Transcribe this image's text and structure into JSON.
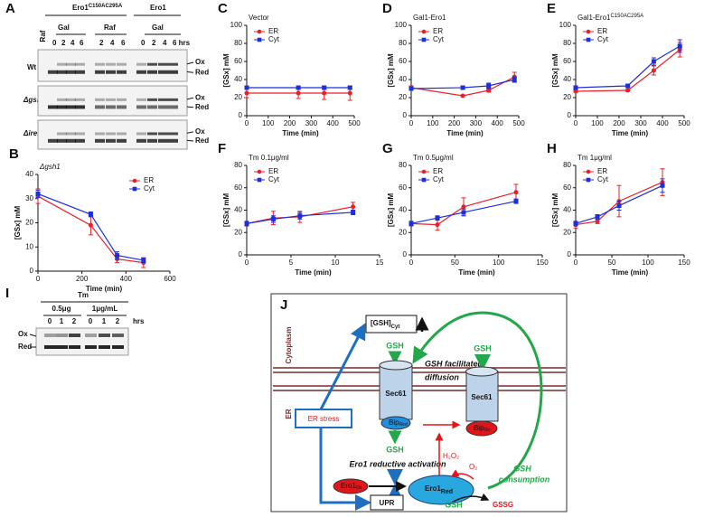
{
  "blot_a": {
    "panel": "A",
    "header_1": "Ero1",
    "header_1_sup": "C150AC295A",
    "header_2": "Ero1",
    "groups": [
      "Gal",
      "Raf",
      "Gal"
    ],
    "lane_raf": "Raf",
    "lanes": [
      "0",
      "2",
      "4",
      "6",
      "2",
      "4",
      "6",
      "0",
      "2",
      "4",
      "6 hrs"
    ],
    "rows": [
      "Wt",
      "Δgsh1",
      "Δire1"
    ],
    "band_ox": "Ox",
    "band_red": "Red"
  },
  "chart_data": [
    {
      "type": "line",
      "panel": "B",
      "title": "Δgsh1",
      "x_label": "Time (min)",
      "y_label": "[GSx] mM",
      "x": [
        0,
        240,
        360,
        480
      ],
      "xlim": [
        0,
        600
      ],
      "xticks": [
        0,
        200,
        400,
        600
      ],
      "ylim": [
        0,
        40
      ],
      "yticks": [
        0,
        10,
        20,
        30,
        40
      ],
      "legend": "upper right",
      "series": [
        {
          "name": "ER",
          "color": "#e8202a",
          "marker": "circle",
          "values": [
            31,
            19,
            5,
            3.5
          ],
          "errors": [
            3,
            4,
            1.5,
            2
          ]
        },
        {
          "name": "Cyt",
          "color": "#1f2fd8",
          "marker": "square",
          "values": [
            32,
            23.5,
            6.5,
            4.5
          ],
          "errors": [
            1.5,
            1,
            1.5,
            1
          ]
        }
      ]
    },
    {
      "type": "line",
      "panel": "C",
      "title": "Vector",
      "x_label": "Time (min)",
      "y_label": "[GSx] mM",
      "x": [
        0,
        240,
        360,
        480
      ],
      "xlim": [
        0,
        500
      ],
      "xticks": [
        0,
        100,
        200,
        300,
        400,
        500
      ],
      "ylim": [
        0,
        100
      ],
      "yticks": [
        0,
        20,
        40,
        60,
        80,
        100
      ],
      "legend": "upper left",
      "series": [
        {
          "name": "ER",
          "color": "#e8202a",
          "marker": "circle",
          "values": [
            25,
            25,
            25,
            25
          ],
          "errors": [
            5,
            6,
            7,
            8
          ]
        },
        {
          "name": "Cyt",
          "color": "#1f2fd8",
          "marker": "square",
          "values": [
            31,
            31,
            31,
            31
          ],
          "errors": [
            2,
            2,
            2,
            2
          ]
        }
      ]
    },
    {
      "type": "line",
      "panel": "D",
      "title": "Gal1-Ero1",
      "x_label": "Time (min)",
      "y_label": "[GSx] mM",
      "x": [
        0,
        240,
        360,
        480
      ],
      "xlim": [
        0,
        500
      ],
      "xticks": [
        0,
        100,
        200,
        300,
        400,
        500
      ],
      "ylim": [
        0,
        100
      ],
      "yticks": [
        0,
        20,
        40,
        60,
        80,
        100
      ],
      "legend": "upper left",
      "series": [
        {
          "name": "ER",
          "color": "#e8202a",
          "marker": "circle",
          "values": [
            31,
            22,
            28,
            43
          ],
          "errors": [
            2,
            1,
            2,
            5
          ]
        },
        {
          "name": "Cyt",
          "color": "#1f2fd8",
          "marker": "square",
          "values": [
            30,
            31,
            33,
            40
          ],
          "errors": [
            1,
            2,
            3,
            3
          ]
        }
      ]
    },
    {
      "type": "line",
      "panel": "E",
      "title": "Gal1-Ero1",
      "title_sup": "C150AC295A",
      "x_label": "Time (min)",
      "y_label": "[GSx] mM",
      "x": [
        0,
        240,
        360,
        480
      ],
      "xlim": [
        0,
        500
      ],
      "xticks": [
        0,
        100,
        200,
        300,
        400,
        500
      ],
      "ylim": [
        0,
        100
      ],
      "yticks": [
        0,
        20,
        40,
        60,
        80,
        100
      ],
      "legend": "upper left",
      "series": [
        {
          "name": "ER",
          "color": "#e8202a",
          "marker": "circle",
          "values": [
            27,
            28,
            50,
            73
          ],
          "errors": [
            1,
            1,
            5,
            8
          ]
        },
        {
          "name": "Cyt",
          "color": "#1f2fd8",
          "marker": "square",
          "values": [
            31,
            33,
            60,
            77
          ],
          "errors": [
            1,
            2,
            4,
            7
          ]
        }
      ]
    },
    {
      "type": "line",
      "panel": "F",
      "title": "Tm 0.1μg/ml",
      "x_label": "Time (min)",
      "y_label": "[GSx] mM",
      "x": [
        0,
        3,
        6,
        12
      ],
      "xlim": [
        0,
        15
      ],
      "xticks": [
        0,
        5,
        10,
        15
      ],
      "ylim": [
        0,
        80
      ],
      "yticks": [
        0,
        20,
        40,
        60,
        80
      ],
      "legend": "upper left",
      "series": [
        {
          "name": "ER",
          "color": "#e8202a",
          "marker": "circle",
          "values": [
            28,
            33,
            34,
            43
          ],
          "errors": [
            2,
            6,
            5,
            4
          ]
        },
        {
          "name": "Cyt",
          "color": "#1f2fd8",
          "marker": "square",
          "values": [
            28,
            32,
            35,
            38
          ],
          "errors": [
            2,
            3,
            3,
            2
          ]
        }
      ]
    },
    {
      "type": "line",
      "panel": "G",
      "title": "Tm 0.5μg/ml",
      "x_label": "Time (min)",
      "y_label": "[GSx] mM",
      "x": [
        0,
        30,
        60,
        120
      ],
      "xlim": [
        0,
        150
      ],
      "xticks": [
        0,
        50,
        100,
        150
      ],
      "ylim": [
        0,
        80
      ],
      "yticks": [
        0,
        20,
        40,
        60,
        80
      ],
      "legend": "upper left",
      "series": [
        {
          "name": "ER",
          "color": "#e8202a",
          "marker": "circle",
          "values": [
            28,
            27,
            43,
            56
          ],
          "errors": [
            2,
            5,
            8,
            7
          ]
        },
        {
          "name": "Cyt",
          "color": "#1f2fd8",
          "marker": "square",
          "values": [
            28,
            33,
            38,
            48
          ],
          "errors": [
            2,
            2,
            3,
            2
          ]
        }
      ]
    },
    {
      "type": "line",
      "panel": "H",
      "title": "Tm 1μg/ml",
      "x_label": "Time (min)",
      "y_label": "[GSx] mM",
      "x": [
        0,
        30,
        60,
        120
      ],
      "xlim": [
        0,
        150
      ],
      "xticks": [
        0,
        50,
        100,
        150
      ],
      "ylim": [
        0,
        80
      ],
      "yticks": [
        0,
        20,
        40,
        60,
        80
      ],
      "legend": "upper left",
      "series": [
        {
          "name": "ER",
          "color": "#e8202a",
          "marker": "circle",
          "values": [
            27,
            30,
            48,
            65
          ],
          "errors": [
            3,
            2,
            14,
            12
          ]
        },
        {
          "name": "Cyt",
          "color": "#1f2fd8",
          "marker": "square",
          "values": [
            28,
            34,
            44,
            62
          ],
          "errors": [
            2,
            2,
            4,
            6
          ]
        }
      ]
    }
  ],
  "blot_i": {
    "panel": "I",
    "treatment": "Tm",
    "doses": [
      "0.5μg",
      "1μg/mL"
    ],
    "lanes": [
      "0",
      "1",
      "2",
      "0",
      "1",
      "2"
    ],
    "unit": "hrs",
    "band_ox": "Ox",
    "band_red": "Red"
  },
  "diagram_j": {
    "panel": "J",
    "gsh_cyt": "[GSH]",
    "gsh_cyt_sub": "Cyt",
    "gsh": "GSH",
    "cytoplasm": "Cytoplasm",
    "er": "ER",
    "diffusion": [
      "GSH facilitated",
      "diffusion"
    ],
    "sec61": "Sec61",
    "bip": "Bip",
    "bip_red": "Red",
    "bip_ox": "Ox",
    "er_stress": "ER stress",
    "ero1_activation": "Ero1 reductive activation",
    "h2o2": "H₂O₂",
    "o2": "O₂",
    "ero1": "Ero1",
    "ero1_ox": "Ox",
    "ero1_red": "Red",
    "gssg": "GSSG",
    "consumption": [
      "GSH",
      "consumption"
    ],
    "upr": "UPR"
  }
}
